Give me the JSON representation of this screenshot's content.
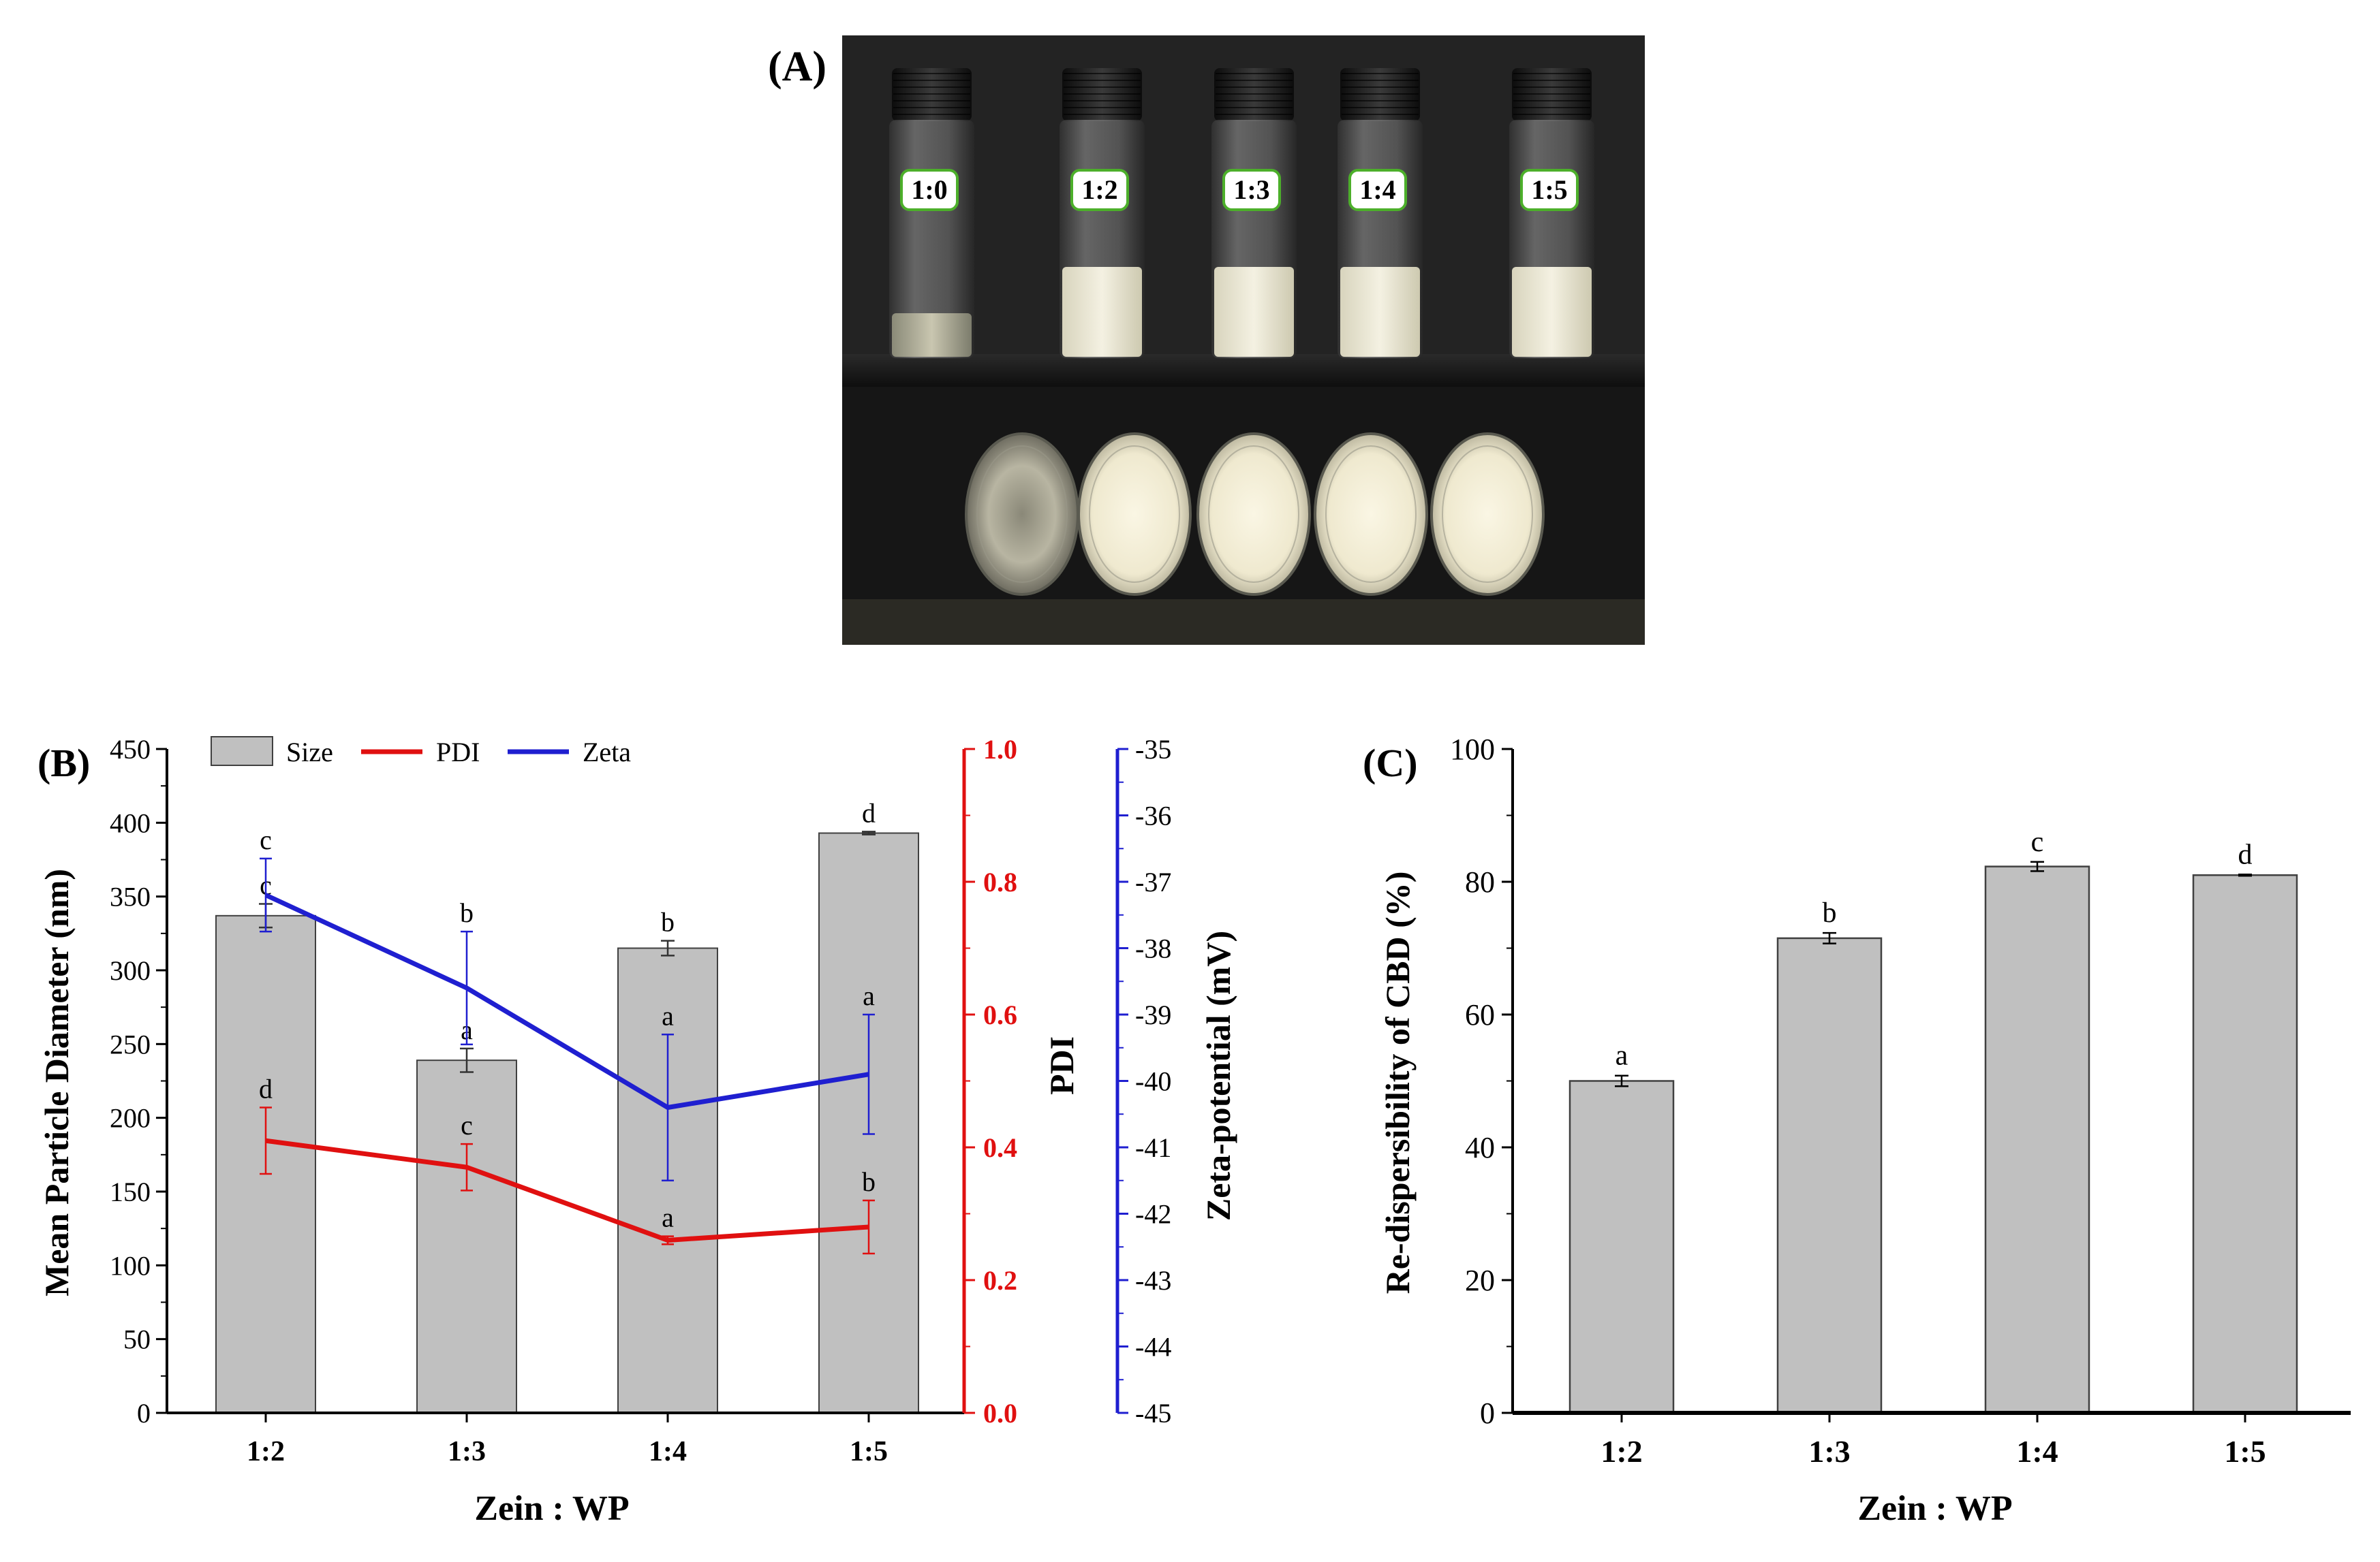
{
  "panel_a": {
    "label": "(A)",
    "vial_labels": [
      "1:0",
      "1:2",
      "1:3",
      "1:4",
      "1:5"
    ]
  },
  "colors": {
    "bar_fill": "#c0c0c0",
    "bar_stroke": "#404040",
    "pdi": "#e01010",
    "zeta": "#1f1fd0",
    "axis": "#000000"
  },
  "chart_data": [
    {
      "id": "B",
      "panel_label": "(B)",
      "type": "bar",
      "categories": [
        "1:2",
        "1:3",
        "1:4",
        "1:5"
      ],
      "xlabel": "Zein : WP",
      "legend": [
        "Size",
        "PDI",
        "Zeta"
      ],
      "legend_position": "top",
      "series": [
        {
          "name": "Size",
          "type": "bar",
          "axis": "left",
          "values": [
            337,
            239,
            315,
            393
          ],
          "errors": [
            8,
            8,
            5,
            1
          ],
          "letters": [
            "c",
            "a",
            "b",
            "d"
          ]
        },
        {
          "name": "PDI",
          "type": "line",
          "axis": "right1",
          "values": [
            0.41,
            0.37,
            0.26,
            0.28
          ],
          "errors": [
            0.05,
            0.035,
            0.006,
            0.04
          ],
          "letters": [
            "d",
            "c",
            "a",
            "b"
          ]
        },
        {
          "name": "Zeta",
          "type": "line",
          "axis": "right2",
          "values": [
            -37.2,
            -38.6,
            -40.4,
            -39.9
          ],
          "errors": [
            0.55,
            0.85,
            1.1,
            0.9
          ],
          "letters": [
            "c",
            "b",
            "a",
            "a"
          ]
        }
      ],
      "axes": {
        "left": {
          "label": "Mean Particle Diameter (nm)",
          "range": [
            0,
            450
          ],
          "ticks": [
            "0",
            "50",
            "100",
            "150",
            "200",
            "250",
            "300",
            "350",
            "400",
            "450"
          ]
        },
        "right1": {
          "label": "PDI",
          "range": [
            0,
            1.0
          ],
          "ticks": [
            "0.0",
            "0.2",
            "0.4",
            "0.6",
            "0.8",
            "1.0"
          ]
        },
        "right2": {
          "label": "Zeta-potential (mV)",
          "range": [
            -45,
            -35
          ],
          "ticks": [
            "-45",
            "-44",
            "-43",
            "-42",
            "-41",
            "-40",
            "-39",
            "-38",
            "-37",
            "-36",
            "-35"
          ]
        }
      }
    },
    {
      "id": "C",
      "panel_label": "(C)",
      "type": "bar",
      "categories": [
        "1:2",
        "1:3",
        "1:4",
        "1:5"
      ],
      "values": [
        50,
        71.5,
        82.3,
        81
      ],
      "errors": [
        0.8,
        0.8,
        0.7,
        0.1
      ],
      "letters": [
        "a",
        "b",
        "c",
        "d"
      ],
      "xlabel": "Zein : WP",
      "ylabel": "Re-dispersibility of CBD (%)",
      "ylim": [
        0,
        100
      ],
      "ticks": [
        "0",
        "20",
        "40",
        "60",
        "80",
        "100"
      ]
    }
  ]
}
